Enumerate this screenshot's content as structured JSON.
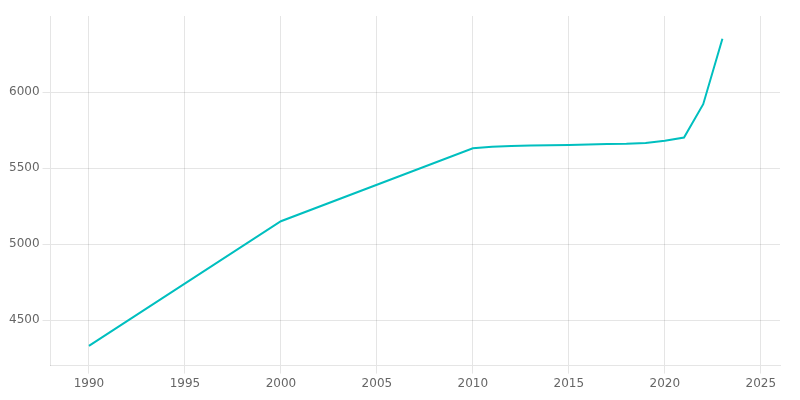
{
  "chart_data": {
    "type": "line",
    "x": [
      1990,
      2000,
      2010,
      2011,
      2012,
      2013,
      2014,
      2015,
      2016,
      2017,
      2018,
      2019,
      2020,
      2021,
      2022,
      2023
    ],
    "values": [
      4330,
      5150,
      5630,
      5640,
      5645,
      5648,
      5650,
      5652,
      5655,
      5658,
      5660,
      5665,
      5680,
      5700,
      5920,
      6350
    ],
    "color": "#00BFBF",
    "xlim": [
      1988,
      2026
    ],
    "ylim": [
      4200,
      6500
    ],
    "xticks": [
      1990,
      1995,
      2000,
      2005,
      2010,
      2015,
      2020,
      2025
    ],
    "yticks": [
      4500,
      5000,
      5500,
      6000
    ],
    "grid": true
  }
}
